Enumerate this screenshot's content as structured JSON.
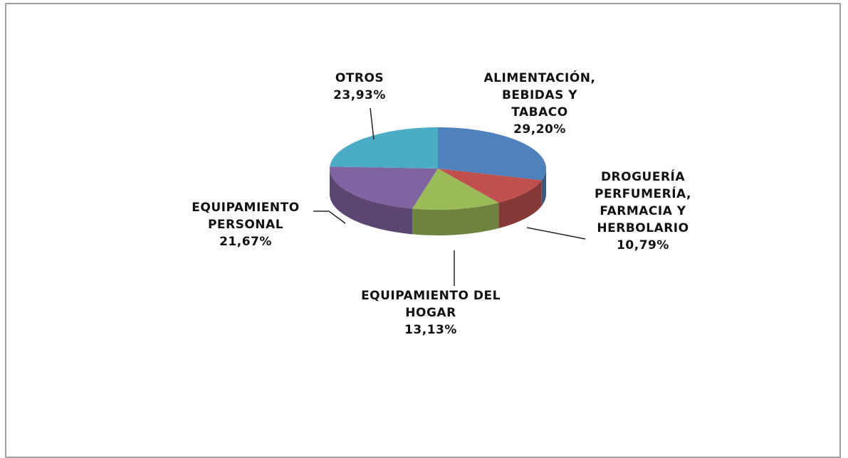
{
  "chart_data": {
    "type": "pie",
    "categories": [
      "ALIMENTACIÓN, BEBIDAS Y TABACO",
      "DROGUERÍA PERFUMERÍA, FARMACIA Y HERBOLARIO",
      "EQUIPAMIENTO DEL HOGAR",
      "EQUIPAMIENTO PERSONAL",
      "OTROS"
    ],
    "values": [
      29.2,
      10.79,
      13.13,
      21.67,
      23.93
    ],
    "value_labels": [
      "29,20%",
      "10,79%",
      "13,13%",
      "21,67%",
      "23,93%"
    ],
    "colors": [
      "#4f81bd",
      "#c0504d",
      "#9bbb59",
      "#8064a2",
      "#4bacc6"
    ]
  }
}
